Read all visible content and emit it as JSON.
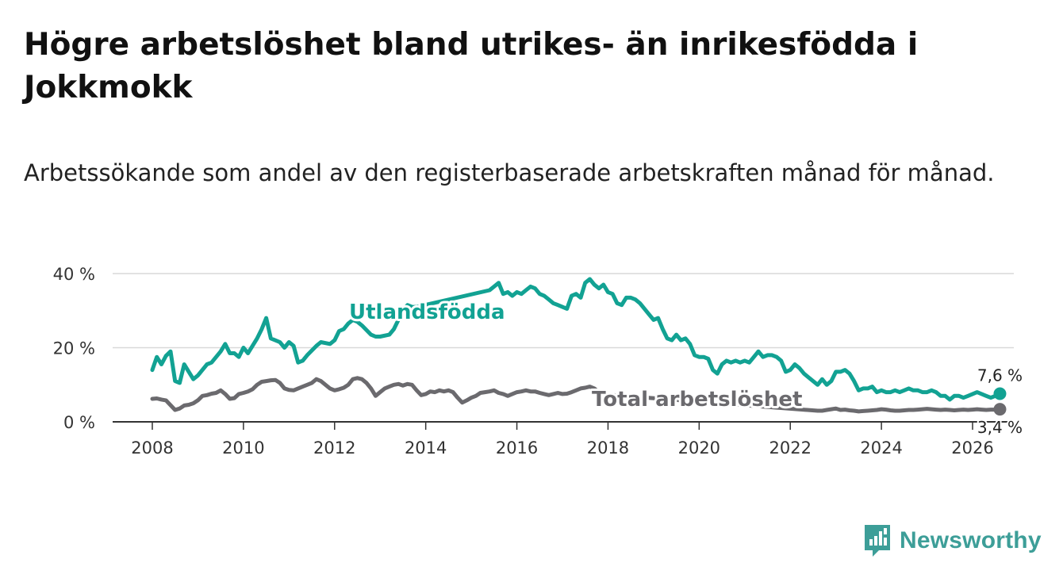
{
  "title": "Högre arbetslöshet bland utrikes- än inrikesfödda i Jokkmokk",
  "subtitle": "Arbetssökande som andel av den registerbaserade arbetskraften månad för månad.",
  "brand": {
    "name": "Newsworthy",
    "color": "#3d9e98"
  },
  "colors": {
    "utlandsfodda": "#12a293",
    "total": "#6b6a6e",
    "grid": "#d9d9d9",
    "axis": "#333333"
  },
  "chart_data": {
    "type": "line",
    "x_unit": "year",
    "xlim": [
      2007.6,
      2026.5
    ],
    "ylim": [
      0,
      40
    ],
    "x_ticks": [
      2008,
      2010,
      2012,
      2014,
      2016,
      2018,
      2020,
      2022,
      2024,
      2026
    ],
    "x_tick_labels": [
      "2008",
      "2010",
      "2012",
      "2014",
      "2016",
      "2018",
      "2020",
      "2022",
      "2024",
      "2026"
    ],
    "y_ticks": [
      0,
      20,
      40
    ],
    "y_tick_labels": [
      "0 %",
      "20 %",
      "40 %"
    ],
    "grid": true,
    "series": [
      {
        "name": "Utlandsfödda",
        "label": "Utlandsfödda",
        "end_label": "7,6 %",
        "color": "#12a293",
        "points": [
          [
            2008.0,
            14
          ],
          [
            2008.1,
            17.5
          ],
          [
            2008.2,
            15.5
          ],
          [
            2008.3,
            17.8
          ],
          [
            2008.4,
            19
          ],
          [
            2008.5,
            11
          ],
          [
            2008.6,
            10.5
          ],
          [
            2008.7,
            15.5
          ],
          [
            2008.8,
            13.5
          ],
          [
            2008.9,
            11.5
          ],
          [
            2009.0,
            12.5
          ],
          [
            2009.2,
            15.5
          ],
          [
            2009.3,
            16
          ],
          [
            2009.5,
            19
          ],
          [
            2009.6,
            21
          ],
          [
            2009.7,
            18.5
          ],
          [
            2009.8,
            18.5
          ],
          [
            2009.9,
            17.5
          ],
          [
            2010.0,
            20
          ],
          [
            2010.1,
            18.5
          ],
          [
            2010.3,
            22.5
          ],
          [
            2010.4,
            25
          ],
          [
            2010.5,
            28
          ],
          [
            2010.6,
            22.5
          ],
          [
            2010.8,
            21.5
          ],
          [
            2010.9,
            20
          ],
          [
            2011.0,
            21.5
          ],
          [
            2011.1,
            20.5
          ],
          [
            2011.2,
            16
          ],
          [
            2011.3,
            16.5
          ],
          [
            2011.4,
            18
          ],
          [
            2011.6,
            20.5
          ],
          [
            2011.7,
            21.5
          ],
          [
            2011.9,
            21
          ],
          [
            2012.0,
            22
          ],
          [
            2012.1,
            24.5
          ],
          [
            2012.2,
            25
          ],
          [
            2012.3,
            26.5
          ],
          [
            2012.4,
            27.5
          ],
          [
            2012.5,
            27
          ],
          [
            2012.6,
            26
          ],
          [
            2012.8,
            23.5
          ],
          [
            2012.9,
            23
          ],
          [
            2013.0,
            23
          ],
          [
            2013.2,
            23.5
          ],
          [
            2013.3,
            25
          ],
          [
            2013.4,
            27.5
          ],
          [
            2013.5,
            30
          ],
          [
            2013.6,
            31.5
          ],
          [
            2013.7,
            31
          ],
          [
            2013.8,
            31
          ],
          [
            2015.4,
            35.5
          ],
          [
            2015.5,
            36.5
          ],
          [
            2015.6,
            37.5
          ],
          [
            2015.7,
            34.5
          ],
          [
            2015.8,
            35
          ],
          [
            2015.9,
            34
          ],
          [
            2016.0,
            35
          ],
          [
            2016.1,
            34.5
          ],
          [
            2016.2,
            35.5
          ],
          [
            2016.3,
            36.5
          ],
          [
            2016.4,
            36
          ],
          [
            2016.5,
            34.5
          ],
          [
            2016.6,
            34
          ],
          [
            2016.7,
            33
          ],
          [
            2016.8,
            32
          ],
          [
            2016.9,
            31.5
          ],
          [
            2017.0,
            31
          ],
          [
            2017.1,
            30.5
          ],
          [
            2017.2,
            34
          ],
          [
            2017.3,
            34.5
          ],
          [
            2017.4,
            33.5
          ],
          [
            2017.5,
            37.5
          ],
          [
            2017.6,
            38.5
          ],
          [
            2017.7,
            37
          ],
          [
            2017.8,
            36
          ],
          [
            2017.9,
            37
          ],
          [
            2018.0,
            35
          ],
          [
            2018.1,
            34.5
          ],
          [
            2018.2,
            32
          ],
          [
            2018.3,
            31.5
          ],
          [
            2018.4,
            33.5
          ],
          [
            2018.5,
            33.5
          ],
          [
            2018.6,
            33
          ],
          [
            2018.7,
            32
          ],
          [
            2018.8,
            30.5
          ],
          [
            2018.9,
            29
          ],
          [
            2019.0,
            27.5
          ],
          [
            2019.1,
            28
          ],
          [
            2019.2,
            25
          ],
          [
            2019.3,
            22.5
          ],
          [
            2019.4,
            22
          ],
          [
            2019.5,
            23.5
          ],
          [
            2019.6,
            22
          ],
          [
            2019.7,
            22.5
          ],
          [
            2019.8,
            21
          ],
          [
            2019.9,
            18
          ],
          [
            2020.0,
            17.5
          ],
          [
            2020.1,
            17.5
          ],
          [
            2020.2,
            17
          ],
          [
            2020.3,
            14
          ],
          [
            2020.4,
            13
          ],
          [
            2020.5,
            15.5
          ],
          [
            2020.6,
            16.5
          ],
          [
            2020.7,
            16
          ],
          [
            2020.8,
            16.5
          ],
          [
            2020.9,
            16
          ],
          [
            2021.0,
            16.5
          ],
          [
            2021.1,
            16
          ],
          [
            2021.2,
            17.5
          ],
          [
            2021.3,
            19
          ],
          [
            2021.4,
            17.5
          ],
          [
            2021.5,
            18
          ],
          [
            2021.6,
            18
          ],
          [
            2021.7,
            17.5
          ],
          [
            2021.8,
            16.5
          ],
          [
            2021.9,
            13.5
          ],
          [
            2022.0,
            14
          ],
          [
            2022.1,
            15.5
          ],
          [
            2022.2,
            14.5
          ],
          [
            2022.3,
            13
          ],
          [
            2022.4,
            12
          ],
          [
            2022.5,
            11
          ],
          [
            2022.6,
            10
          ],
          [
            2022.7,
            11.5
          ],
          [
            2022.8,
            10
          ],
          [
            2022.9,
            11
          ],
          [
            2023.0,
            13.5
          ],
          [
            2023.1,
            13.5
          ],
          [
            2023.2,
            14
          ],
          [
            2023.3,
            13
          ],
          [
            2023.4,
            11
          ],
          [
            2023.5,
            8.5
          ],
          [
            2023.6,
            9
          ],
          [
            2023.7,
            9
          ],
          [
            2023.8,
            9.5
          ],
          [
            2023.9,
            8
          ],
          [
            2024.0,
            8.5
          ],
          [
            2024.1,
            8
          ],
          [
            2024.2,
            8
          ],
          [
            2024.3,
            8.5
          ],
          [
            2024.4,
            8
          ],
          [
            2024.5,
            8.5
          ],
          [
            2024.6,
            9
          ],
          [
            2024.7,
            8.5
          ],
          [
            2024.8,
            8.5
          ],
          [
            2024.9,
            8
          ],
          [
            2025.0,
            8
          ],
          [
            2025.1,
            8.5
          ],
          [
            2025.2,
            8
          ],
          [
            2025.3,
            7
          ],
          [
            2025.4,
            7
          ],
          [
            2025.5,
            6
          ],
          [
            2025.6,
            7
          ],
          [
            2025.7,
            7
          ],
          [
            2025.8,
            6.5
          ],
          [
            2025.9,
            7
          ],
          [
            2026.0,
            7.5
          ],
          [
            2026.1,
            8
          ],
          [
            2026.2,
            7.5
          ],
          [
            2026.3,
            7
          ],
          [
            2026.4,
            6.5
          ],
          [
            2026.5,
            7
          ],
          [
            2026.6,
            7.6
          ]
        ]
      },
      {
        "name": "Total arbetslöshet",
        "label": "Total arbetslöshet",
        "end_label": "3,4 %",
        "color": "#6b6a6e",
        "points": [
          [
            2008.0,
            6.2
          ],
          [
            2008.1,
            6.3
          ],
          [
            2008.2,
            6
          ],
          [
            2008.3,
            5.8
          ],
          [
            2008.4,
            4.5
          ],
          [
            2008.5,
            3.2
          ],
          [
            2008.6,
            3.6
          ],
          [
            2008.7,
            4.4
          ],
          [
            2008.8,
            4.6
          ],
          [
            2008.9,
            5
          ],
          [
            2009.0,
            5.8
          ],
          [
            2009.1,
            7
          ],
          [
            2009.2,
            7.2
          ],
          [
            2009.3,
            7.6
          ],
          [
            2009.4,
            7.8
          ],
          [
            2009.5,
            8.5
          ],
          [
            2009.6,
            7.5
          ],
          [
            2009.7,
            6.2
          ],
          [
            2009.8,
            6.4
          ],
          [
            2009.9,
            7.5
          ],
          [
            2010.0,
            7.8
          ],
          [
            2010.1,
            8.2
          ],
          [
            2010.2,
            8.8
          ],
          [
            2010.3,
            10
          ],
          [
            2010.4,
            10.8
          ],
          [
            2010.5,
            11
          ],
          [
            2010.6,
            11.2
          ],
          [
            2010.7,
            11.3
          ],
          [
            2010.8,
            10.5
          ],
          [
            2010.9,
            9
          ],
          [
            2011.0,
            8.6
          ],
          [
            2011.1,
            8.5
          ],
          [
            2011.2,
            9
          ],
          [
            2011.3,
            9.5
          ],
          [
            2011.4,
            10
          ],
          [
            2011.5,
            10.5
          ],
          [
            2011.6,
            11.5
          ],
          [
            2011.7,
            11
          ],
          [
            2011.8,
            10
          ],
          [
            2011.9,
            9
          ],
          [
            2012.0,
            8.5
          ],
          [
            2012.1,
            8.8
          ],
          [
            2012.2,
            9.2
          ],
          [
            2012.3,
            10
          ],
          [
            2012.4,
            11.5
          ],
          [
            2012.5,
            11.8
          ],
          [
            2012.6,
            11.5
          ],
          [
            2012.7,
            10.5
          ],
          [
            2012.8,
            9
          ],
          [
            2012.9,
            7
          ],
          [
            2013.0,
            8
          ],
          [
            2013.1,
            9
          ],
          [
            2013.2,
            9.5
          ],
          [
            2013.3,
            10
          ],
          [
            2013.4,
            10.2
          ],
          [
            2013.5,
            9.8
          ],
          [
            2013.6,
            10.2
          ],
          [
            2013.7,
            10
          ],
          [
            2013.8,
            8.5
          ],
          [
            2013.9,
            7.2
          ],
          [
            2014.0,
            7.5
          ],
          [
            2014.1,
            8.2
          ],
          [
            2014.2,
            8
          ],
          [
            2014.3,
            8.5
          ],
          [
            2014.4,
            8.2
          ],
          [
            2014.5,
            8.5
          ],
          [
            2014.6,
            8
          ],
          [
            2014.7,
            6.5
          ],
          [
            2014.8,
            5.2
          ],
          [
            2014.9,
            5.8
          ],
          [
            2015.0,
            6.5
          ],
          [
            2015.1,
            7
          ],
          [
            2015.2,
            7.8
          ],
          [
            2015.3,
            8
          ],
          [
            2015.4,
            8.2
          ],
          [
            2015.5,
            8.5
          ],
          [
            2015.6,
            7.8
          ],
          [
            2015.7,
            7.5
          ],
          [
            2015.8,
            7
          ],
          [
            2015.9,
            7.5
          ],
          [
            2016.0,
            8
          ],
          [
            2016.1,
            8.2
          ],
          [
            2016.2,
            8.5
          ],
          [
            2016.3,
            8.2
          ],
          [
            2016.4,
            8.2
          ],
          [
            2016.5,
            7.8
          ],
          [
            2016.6,
            7.5
          ],
          [
            2016.7,
            7.2
          ],
          [
            2016.8,
            7.5
          ],
          [
            2016.9,
            7.8
          ],
          [
            2017.0,
            7.5
          ],
          [
            2017.1,
            7.6
          ],
          [
            2017.2,
            8
          ],
          [
            2017.3,
            8.5
          ],
          [
            2017.4,
            9
          ],
          [
            2017.5,
            9.2
          ],
          [
            2017.6,
            9.5
          ],
          [
            2017.7,
            9
          ],
          [
            2017.8,
            8
          ],
          [
            2017.9,
            7.5
          ],
          [
            2018.0,
            7
          ],
          [
            2018.1,
            7.2
          ],
          [
            2022.6,
            3
          ],
          [
            2022.7,
            3
          ],
          [
            2022.8,
            3.2
          ],
          [
            2022.9,
            3.4
          ],
          [
            2023.0,
            3.6
          ],
          [
            2023.1,
            3.2
          ],
          [
            2023.2,
            3.3
          ],
          [
            2023.3,
            3.1
          ],
          [
            2023.4,
            3
          ],
          [
            2023.5,
            2.8
          ],
          [
            2023.6,
            2.9
          ],
          [
            2023.7,
            3
          ],
          [
            2023.8,
            3.1
          ],
          [
            2023.9,
            3.2
          ],
          [
            2024.0,
            3.4
          ],
          [
            2024.1,
            3.3
          ],
          [
            2024.2,
            3.1
          ],
          [
            2024.3,
            3
          ],
          [
            2024.4,
            3
          ],
          [
            2024.5,
            3.1
          ],
          [
            2024.6,
            3.2
          ],
          [
            2024.7,
            3.2
          ],
          [
            2024.8,
            3.3
          ],
          [
            2024.9,
            3.4
          ],
          [
            2025.0,
            3.5
          ],
          [
            2025.1,
            3.4
          ],
          [
            2025.2,
            3.3
          ],
          [
            2025.3,
            3.2
          ],
          [
            2025.4,
            3.3
          ],
          [
            2025.5,
            3.2
          ],
          [
            2025.6,
            3.1
          ],
          [
            2025.7,
            3.2
          ],
          [
            2025.8,
            3.3
          ],
          [
            2025.9,
            3.2
          ],
          [
            2026.0,
            3.3
          ],
          [
            2026.1,
            3.4
          ],
          [
            2026.2,
            3.3
          ],
          [
            2026.3,
            3.2
          ],
          [
            2026.4,
            3.3
          ],
          [
            2026.5,
            3.3
          ],
          [
            2026.6,
            3.4
          ]
        ]
      }
    ]
  }
}
